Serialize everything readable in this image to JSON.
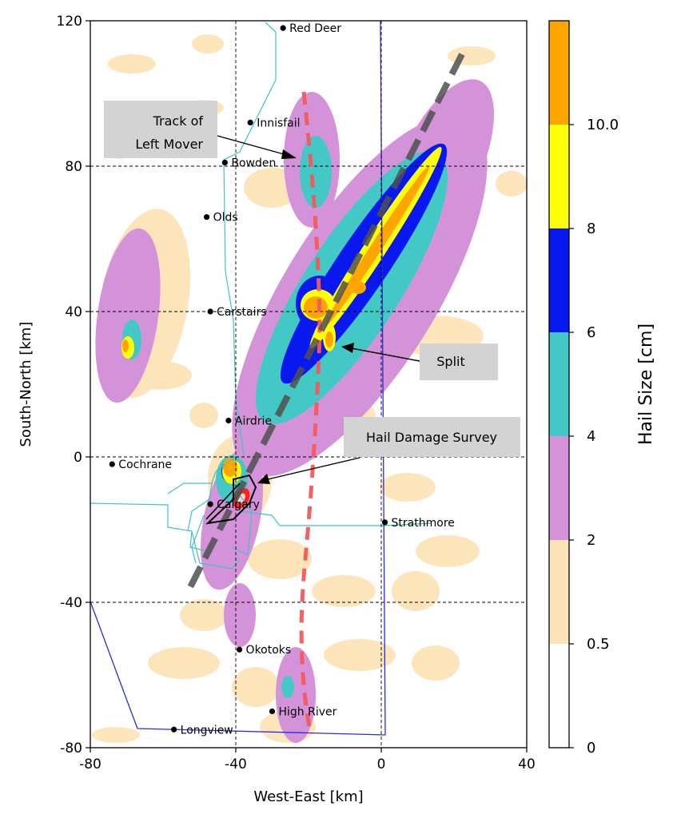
{
  "axes": {
    "xlabel": "West-East [km]",
    "ylabel": "South-North [km]",
    "xlim": [
      -80,
      40
    ],
    "ylim": [
      -80,
      120
    ],
    "xticks": [
      "-80",
      "-40",
      "0",
      "40"
    ],
    "yticks": [
      "120",
      "80",
      "40",
      "0",
      "-40",
      "-80"
    ],
    "grid_x": [
      -40,
      0
    ],
    "grid_y": [
      80,
      40,
      0,
      -40
    ]
  },
  "colorbar": {
    "label": "Hail Size [cm]",
    "ticks": [
      "0",
      "0.5",
      "2",
      "4",
      "6",
      "8",
      "10.0"
    ],
    "colors": [
      "#ffffff",
      "#fde4b8",
      "#d493d9",
      "#43c8c6",
      "#0a18f0",
      "#ffff0a",
      "#ffa500"
    ]
  },
  "cities": [
    {
      "name": "Red Deer",
      "x": -27,
      "y": 118
    },
    {
      "name": "Innisfail",
      "x": -36,
      "y": 92
    },
    {
      "name": "Bowden",
      "x": -43,
      "y": 81
    },
    {
      "name": "Olds",
      "x": -48,
      "y": 66
    },
    {
      "name": "Carstairs",
      "x": -47,
      "y": 40
    },
    {
      "name": "Airdrie",
      "x": -42,
      "y": 10
    },
    {
      "name": "Cochrane",
      "x": -74,
      "y": -2
    },
    {
      "name": "Calgary",
      "x": -47,
      "y": -13
    },
    {
      "name": "Strathmore",
      "x": 1,
      "y": -18
    },
    {
      "name": "Okotoks",
      "x": -39,
      "y": -53
    },
    {
      "name": "High River",
      "x": -30,
      "y": -70
    },
    {
      "name": "Longview",
      "x": -57,
      "y": -75
    }
  ],
  "annotations": {
    "left_mover": [
      "Track of",
      "Left Mover"
    ],
    "split": "Split",
    "survey": "Hail Damage Survey"
  },
  "colors": {
    "main_track": "#505050",
    "left_track": "#f25a5a",
    "border_blue": "#2b2bd9",
    "roads_cyan": "#3fc3c0",
    "annotation_box": "#d3d3d3"
  }
}
